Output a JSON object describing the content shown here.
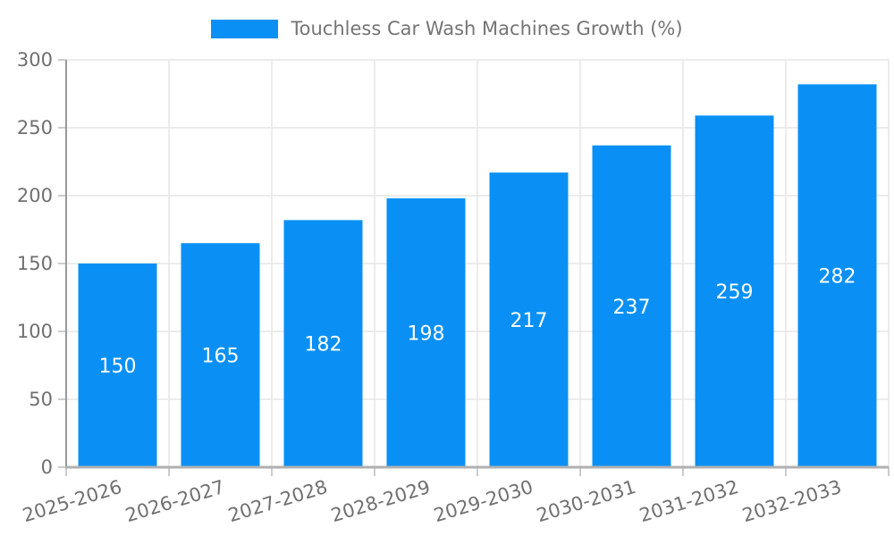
{
  "legend": {
    "label": "Touchless Car Wash Machines Growth (%)",
    "swatch_color": "#0a90f5",
    "position": "top-center"
  },
  "chart_data": {
    "type": "bar",
    "title": "Touchless Car Wash Machines Growth (%)",
    "categories": [
      "2025-2026",
      "2026-2027",
      "2027-2028",
      "2028-2029",
      "2029-2030",
      "2030-2031",
      "2031-2032",
      "2032-2033"
    ],
    "values": [
      150,
      165,
      182,
      198,
      217,
      237,
      259,
      282
    ],
    "series_name": "Touchless Car Wash Machines Growth (%)",
    "xlabel": "",
    "ylabel": "",
    "ylim": [
      0,
      300
    ],
    "yticks": [
      0,
      50,
      100,
      150,
      200,
      250,
      300
    ],
    "grid": true,
    "bar_label_position": "center",
    "x_label_rotation_deg": -17,
    "colors": {
      "bar": "#0a90f5",
      "bar_label": "#ffffff",
      "axis_label": "#707070",
      "legend_text": "#757575",
      "grid": "#e6e6e6",
      "axis_line": "#999999",
      "bottom_axis_line": "#b0b0b0",
      "tick": "#cccccc",
      "background": "#ffffff"
    }
  }
}
